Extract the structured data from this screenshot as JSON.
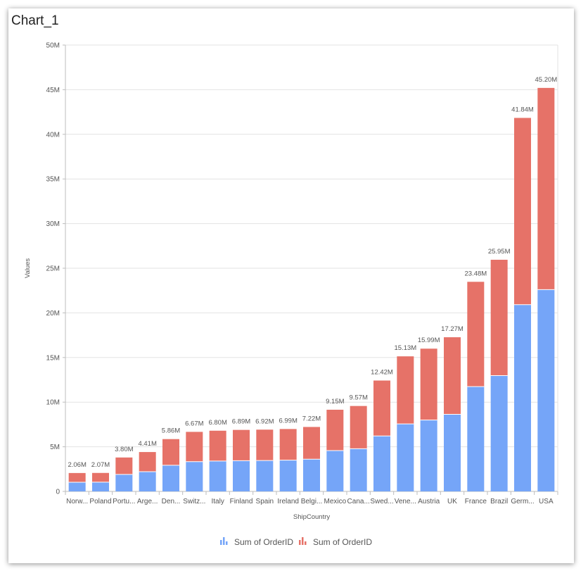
{
  "chart_title": "Chart_1",
  "colors": {
    "series1": "#75A5F8",
    "series2": "#E67268",
    "grid": "#e3e3e3",
    "axis": "#bdbdbd"
  },
  "chart_data": {
    "type": "bar",
    "stacked": true,
    "xlabel": "ShipCountry",
    "ylabel": "Values",
    "ylim": [
      0,
      50000000
    ],
    "yticks": [
      "0",
      "5M",
      "10M",
      "15M",
      "20M",
      "25M",
      "30M",
      "35M",
      "40M",
      "45M",
      "50M"
    ],
    "grid": true,
    "legend_position": "bottom",
    "categories": [
      "Norw...",
      "Poland",
      "Portu...",
      "Arge...",
      "Den...",
      "Switz...",
      "Italy",
      "Finland",
      "Spain",
      "Ireland",
      "Belgi...",
      "Mexico",
      "Cana...",
      "Swed...",
      "Vene...",
      "Austria",
      "UK",
      "France",
      "Brazil",
      "Germ...",
      "USA"
    ],
    "series": [
      {
        "name": "Sum of OrderID",
        "values": [
          1030000,
          1035000,
          1900000,
          2205000,
          2930000,
          3335000,
          3400000,
          3445000,
          3460000,
          3495000,
          3610000,
          4575000,
          4785000,
          6210000,
          7565000,
          7995000,
          8635000,
          11740000,
          12975000,
          20920000,
          22600000
        ]
      },
      {
        "name": "Sum of OrderID",
        "values": [
          1030000,
          1035000,
          1900000,
          2205000,
          2930000,
          3335000,
          3400000,
          3445000,
          3460000,
          3495000,
          3610000,
          4575000,
          4785000,
          6210000,
          7565000,
          7995000,
          8635000,
          11740000,
          12975000,
          20920000,
          22600000
        ]
      }
    ],
    "total_labels": [
      "2.06M",
      "2.07M",
      "3.80M",
      "4.41M",
      "5.86M",
      "6.67M",
      "6.80M",
      "6.89M",
      "6.92M",
      "6.99M",
      "7.22M",
      "9.15M",
      "9.57M",
      "12.42M",
      "15.13M",
      "15.99M",
      "17.27M",
      "23.48M",
      "25.95M",
      "41.84M",
      "45.20M"
    ]
  }
}
